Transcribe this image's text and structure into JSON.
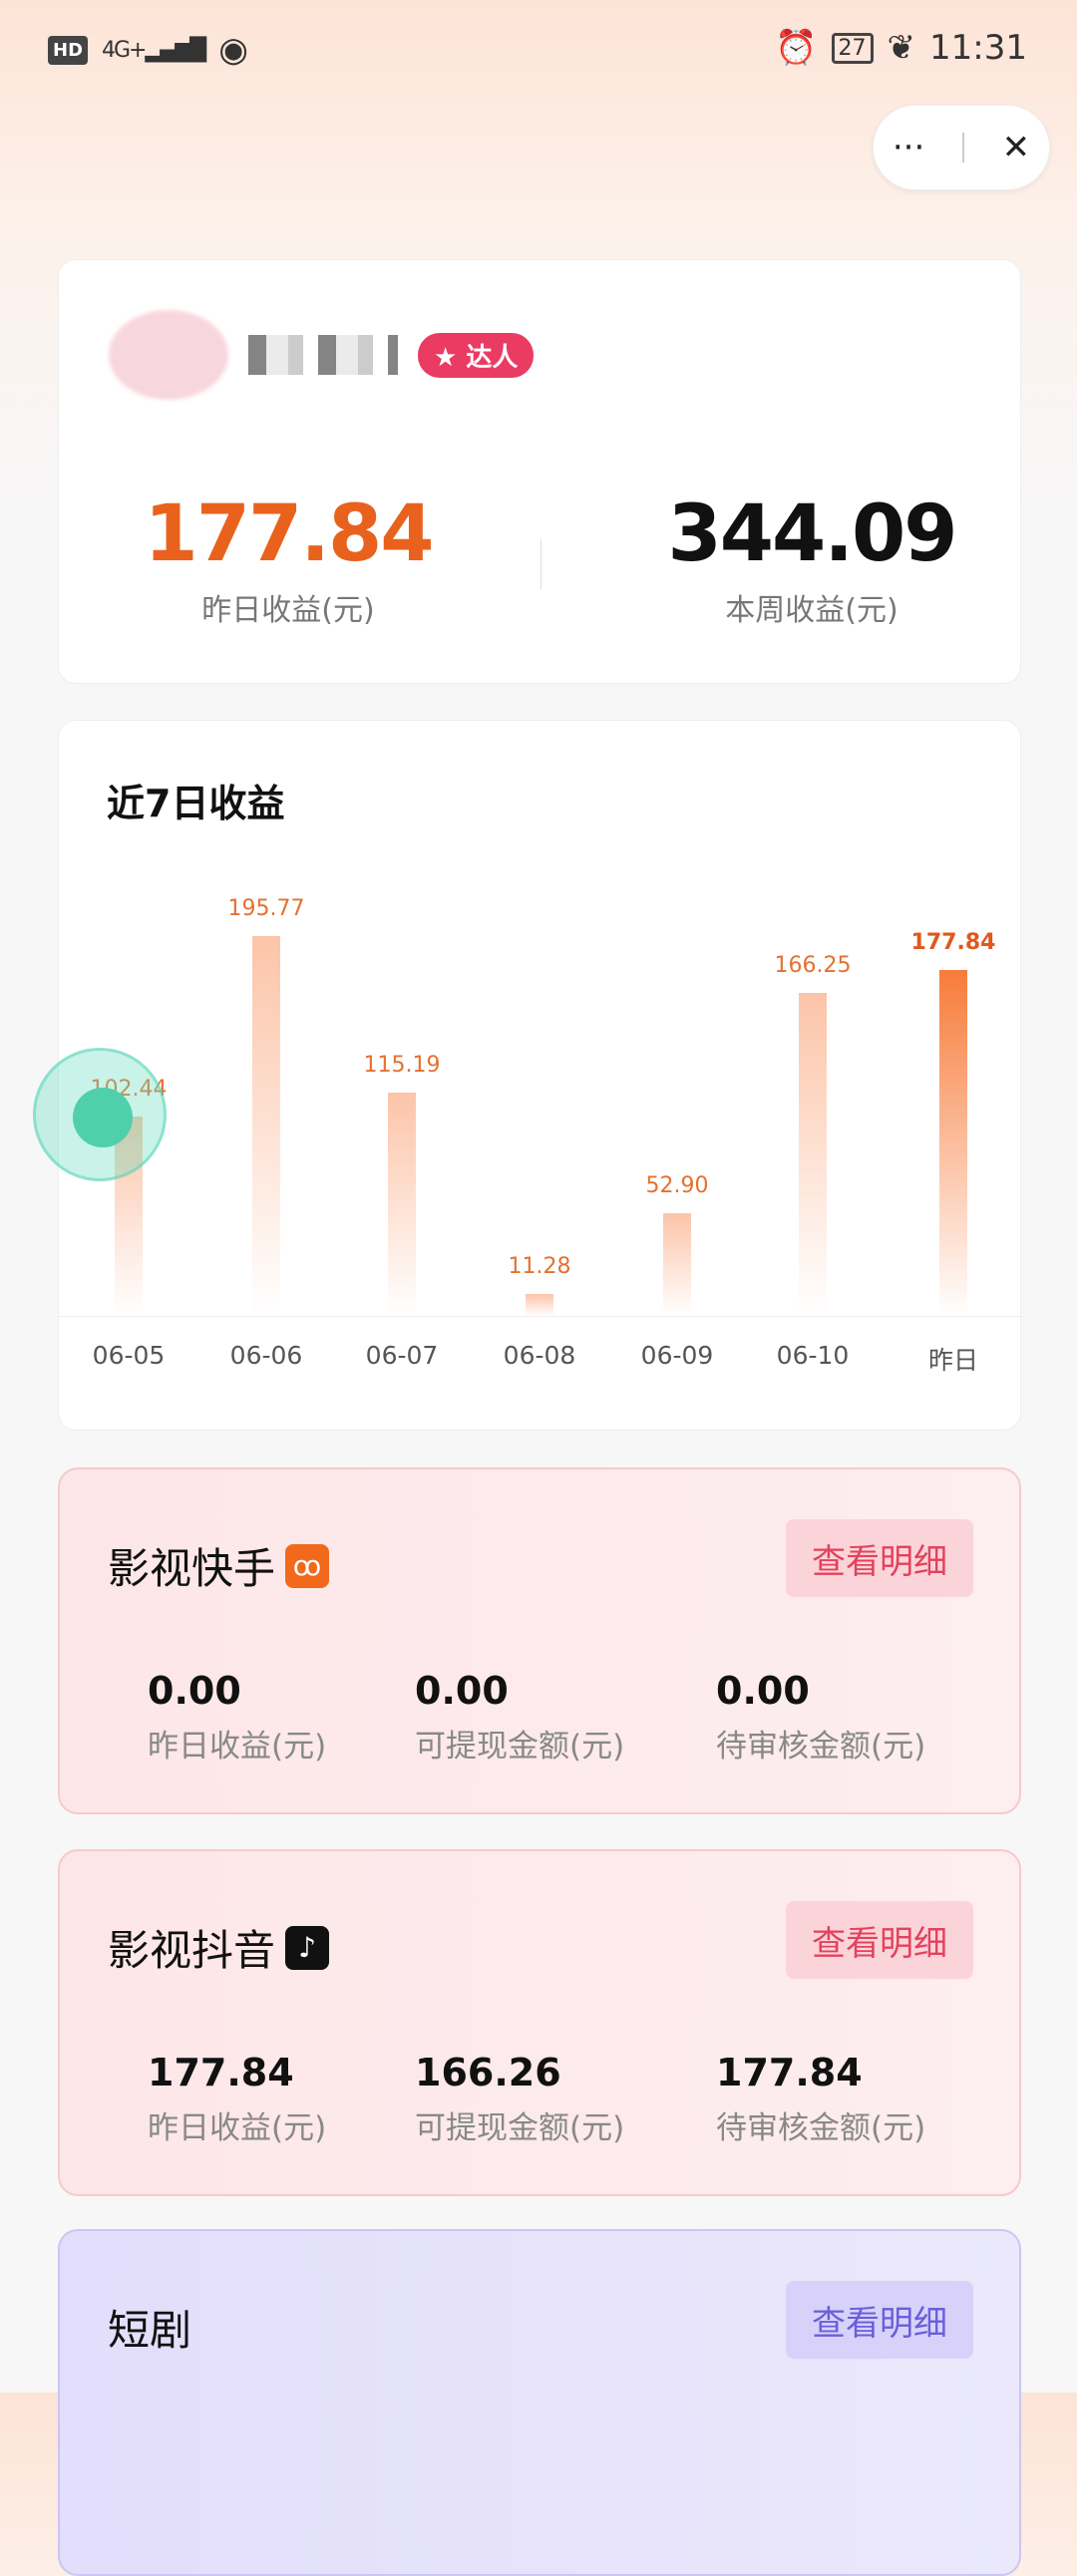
{
  "status_bar": {
    "left": [
      "HD",
      "4G+"
    ],
    "battery": "27",
    "time": "11:31"
  },
  "capsule": {
    "more": "···",
    "close": "✕"
  },
  "summary": {
    "badge": "达人",
    "yesterday_value": "177.84",
    "yesterday_label": "昨日收益(元)",
    "week_value": "344.09",
    "week_label": "本周收益(元)",
    "accent": "#e9621d"
  },
  "chart_data": {
    "type": "bar",
    "title": "近7日收益",
    "categories": [
      "06-05",
      "06-06",
      "06-07",
      "06-08",
      "06-09",
      "06-10",
      "昨日"
    ],
    "values": [
      102.44,
      195.77,
      115.19,
      11.28,
      52.9,
      166.25,
      177.84
    ],
    "value_labels": [
      "102.44",
      "195.77",
      "115.19",
      "11.28",
      "52.90",
      "166.25",
      "177.84"
    ],
    "highlight": "昨日",
    "ylim": [
      0,
      200
    ],
    "grid": false
  },
  "platforms": [
    {
      "name": "影视快手",
      "icon": "kuaishou-icon",
      "detail": "查看明细",
      "values": [
        {
          "v": "0.00",
          "l": "昨日收益(元)"
        },
        {
          "v": "0.00",
          "l": "可提现金额(元)"
        },
        {
          "v": "0.00",
          "l": "待审核金额(元)"
        }
      ]
    },
    {
      "name": "影视抖音",
      "icon": "douyin-icon",
      "detail": "查看明细",
      "values": [
        {
          "v": "177.84",
          "l": "昨日收益(元)"
        },
        {
          "v": "166.26",
          "l": "可提现金额(元)"
        },
        {
          "v": "177.84",
          "l": "待审核金额(元)"
        }
      ]
    },
    {
      "name": "短剧",
      "detail": "查看明细"
    }
  ]
}
